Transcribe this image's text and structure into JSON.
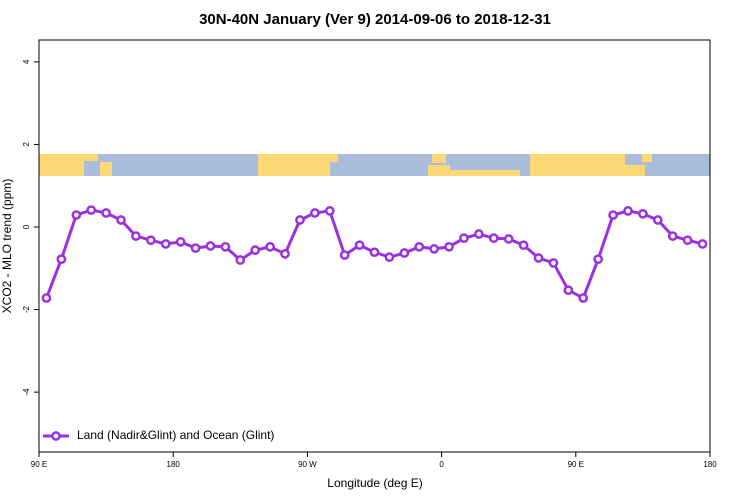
{
  "chart_data": {
    "type": "line",
    "title": "30N-40N January (Ver 9)   2014-09-06 to 2018-12-31",
    "xlabel": "Longitude (deg E)",
    "ylabel": "XCO2 - MLO trend (ppm)",
    "x": [
      95,
      105,
      115,
      125,
      135,
      145,
      155,
      165,
      175,
      185,
      195,
      205,
      215,
      225,
      235,
      245,
      255,
      265,
      275,
      285,
      295,
      305,
      315,
      325,
      335,
      345,
      355,
      365,
      375,
      385,
      395,
      405,
      415,
      425,
      435,
      445,
      455,
      465,
      475,
      485,
      495,
      505,
      515,
      525,
      535
    ],
    "series": [
      {
        "name": "Land (Nadir&Glint) and Ocean (Glint)",
        "color": "#9b30e0",
        "values": [
          -1.72,
          -0.78,
          0.29,
          0.41,
          0.34,
          0.17,
          -0.22,
          -0.32,
          -0.41,
          -0.36,
          -0.51,
          -0.46,
          -0.48,
          -0.8,
          -0.56,
          -0.48,
          -0.65,
          0.17,
          0.34,
          0.39,
          -0.68,
          -0.44,
          -0.61,
          -0.73,
          -0.63,
          -0.48,
          -0.53,
          -0.48,
          -0.27,
          -0.17,
          -0.27,
          -0.29,
          -0.44,
          -0.75,
          -0.87,
          -1.53,
          -1.72,
          -0.78,
          0.29,
          0.39,
          0.32,
          0.17,
          -0.22,
          -0.32,
          -0.41
        ]
      }
    ],
    "xlim": [
      90,
      540
    ],
    "xticks": [
      {
        "value": 90,
        "label": "90 E"
      },
      180,
      {
        "value": 270,
        "label": "90 W"
      },
      {
        "value": 360,
        "label": "0"
      },
      {
        "value": 450,
        "label": "90 E"
      },
      {
        "value": 540,
        "label": "180"
      }
    ],
    "ylim": [
      -5.45,
      4.53
    ],
    "yticks": [
      -4,
      -2,
      0,
      2,
      4
    ],
    "legend": "bottomleft"
  }
}
